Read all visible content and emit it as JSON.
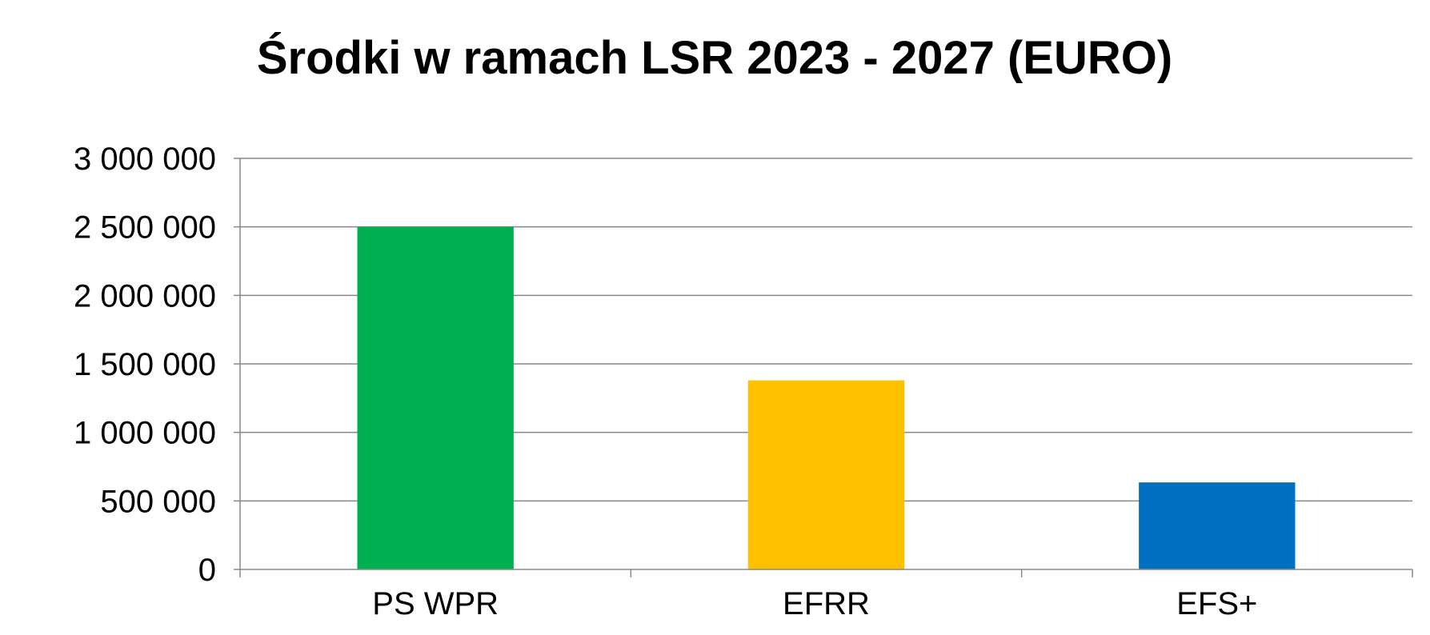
{
  "chart_data": {
    "type": "bar",
    "title": "Środki w ramach LSR 2023 - 2027 (EURO)",
    "xlabel": "",
    "ylabel": "",
    "categories": [
      "PS WPR",
      "EFRR",
      "EFS+"
    ],
    "values": [
      2500000,
      1380000,
      635000
    ],
    "colors": [
      "#00B050",
      "#FFC000",
      "#0070C0"
    ],
    "ylim": [
      0,
      3000000
    ],
    "yticks": [
      0,
      500000,
      1000000,
      1500000,
      2000000,
      2500000,
      3000000
    ],
    "ytick_labels": [
      "0",
      "500 000",
      "1 000 000",
      "1 500 000",
      "2 000 000",
      "2 500 000",
      "3 000 000"
    ],
    "grid": true,
    "legend": "none"
  }
}
